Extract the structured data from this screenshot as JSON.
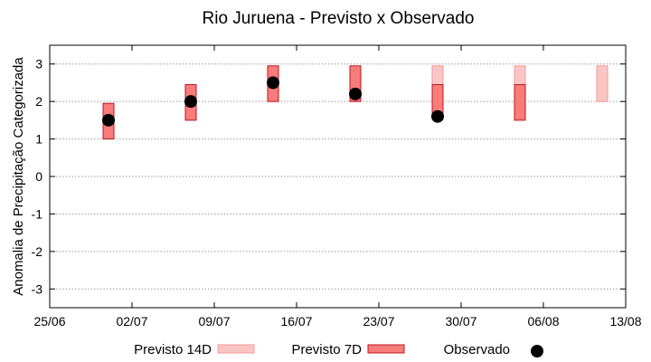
{
  "chart_data": {
    "type": "range-bar-scatter",
    "title": "Rio Juruena - Previsto x Observado",
    "ylabel": "Anomalia de Precipitação Categorizada",
    "xlabel": "",
    "ylim": [
      -3.5,
      3.5
    ],
    "yticks": [
      -3,
      -2,
      -1,
      0,
      1,
      2,
      3
    ],
    "xlim": [
      "2024-06-25",
      "2024-08-13"
    ],
    "xticks": [
      "25/06",
      "02/07",
      "09/07",
      "16/07",
      "23/07",
      "30/07",
      "06/08",
      "13/08"
    ],
    "grid": "horizontal dotted",
    "legend_position": "bottom",
    "colors": {
      "previsto_14d_fill": "#f9c6c4",
      "previsto_14d_stroke": "#f29a97",
      "previsto_7d_fill": "#f87c7a",
      "previsto_7d_stroke": "#c0141c",
      "observado": "#000000",
      "gridline": "#9a9a9a"
    },
    "series": [
      {
        "name": "Previsto 14D",
        "kind": "range-bar",
        "points": [
          {
            "x": "2024-07-28",
            "low": 2,
            "high": 2.95
          },
          {
            "x": "2024-08-04",
            "low": 2,
            "high": 2.95
          },
          {
            "x": "2024-08-11",
            "low": 2,
            "high": 2.95
          }
        ]
      },
      {
        "name": "Previsto 7D",
        "kind": "range-bar",
        "points": [
          {
            "x": "2024-06-30",
            "low": 1,
            "high": 1.95
          },
          {
            "x": "2024-07-07",
            "low": 1.5,
            "high": 2.45
          },
          {
            "x": "2024-07-14",
            "low": 2,
            "high": 2.95
          },
          {
            "x": "2024-07-21",
            "low": 2,
            "high": 2.95
          },
          {
            "x": "2024-07-28",
            "low": 1.6,
            "high": 2.45
          },
          {
            "x": "2024-08-04",
            "low": 1.5,
            "high": 2.45
          }
        ]
      },
      {
        "name": "Observado",
        "kind": "point",
        "points": [
          {
            "x": "2024-06-30",
            "y": 1.5
          },
          {
            "x": "2024-07-07",
            "y": 2.0
          },
          {
            "x": "2024-07-14",
            "y": 2.5
          },
          {
            "x": "2024-07-21",
            "y": 2.2
          },
          {
            "x": "2024-07-28",
            "y": 1.6
          }
        ]
      }
    ]
  }
}
